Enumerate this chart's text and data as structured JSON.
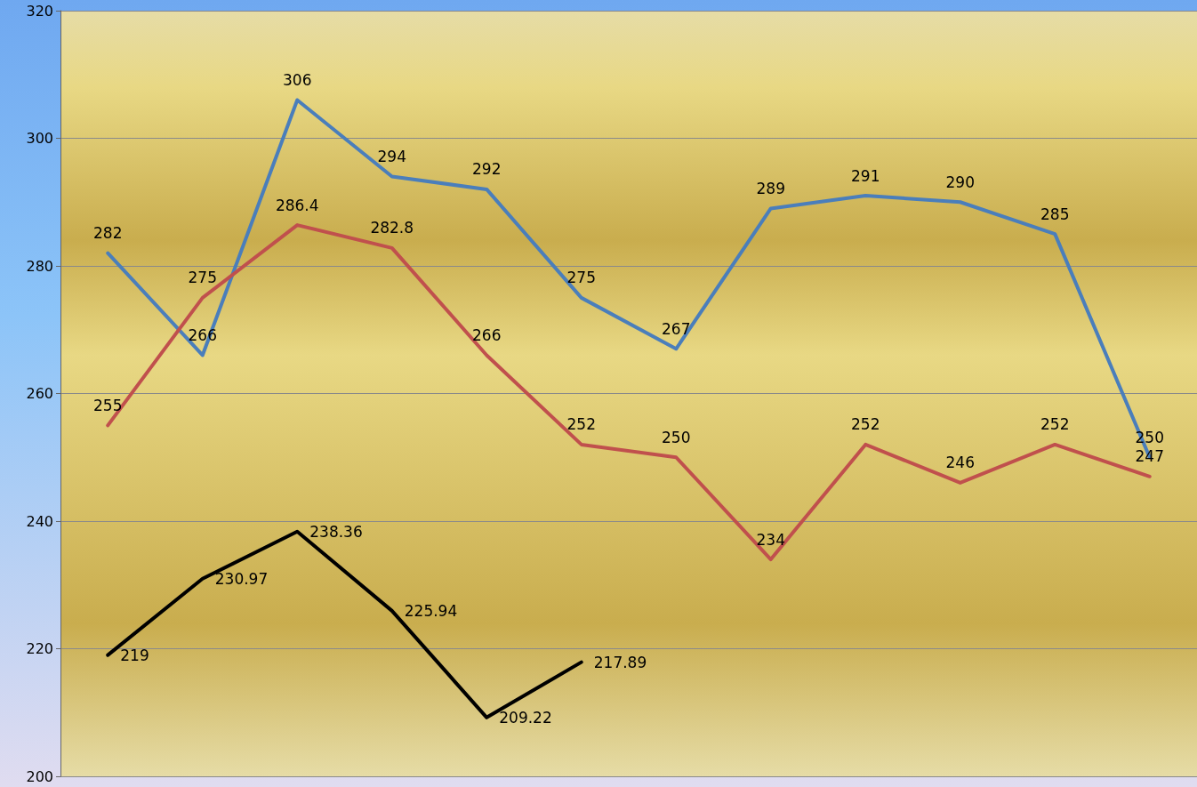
{
  "chart_data": {
    "type": "line",
    "categories": [
      null,
      null,
      null,
      null,
      null,
      null,
      null,
      null,
      null,
      null,
      null,
      null
    ],
    "series": [
      {
        "color": "#4a7ebb",
        "values": [
          282,
          266,
          306,
          294,
          292,
          275,
          267,
          289,
          291,
          290,
          285,
          250
        ]
      },
      {
        "color": "#c0504d",
        "values": [
          255,
          275,
          286.4,
          282.8,
          266,
          252,
          250,
          234,
          252,
          246,
          252,
          247
        ]
      },
      {
        "color": "#000000",
        "values": [
          219,
          230.97,
          238.36,
          225.94,
          209.22,
          217.89,
          null,
          null,
          null,
          null,
          null,
          null
        ]
      }
    ],
    "ylim": [
      200,
      320
    ],
    "yticks": [
      200,
      220,
      240,
      260,
      280,
      300,
      320
    ],
    "grid": "y",
    "tick_labels": "y",
    "data_labels": true,
    "marker": "none",
    "line_style": "solid"
  }
}
